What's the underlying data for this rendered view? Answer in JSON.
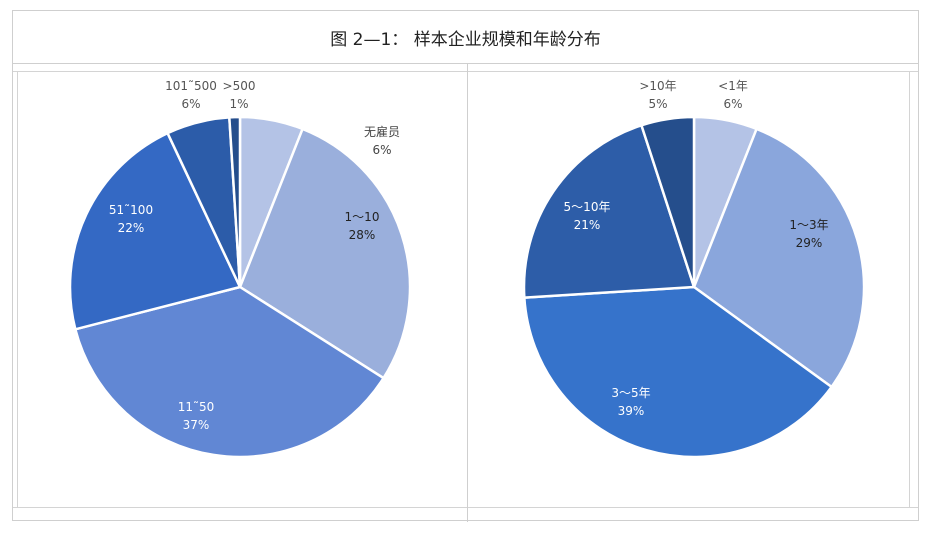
{
  "title": "图 2—1： 样本企业规模和年龄分布",
  "chart_data": [
    {
      "type": "pie",
      "slices": [
        {
          "label": "无雇员",
          "pct_text": "6%",
          "value": 6,
          "color": "#b4c3e6"
        },
        {
          "label": "1～10",
          "pct_text": "28%",
          "value": 28,
          "color": "#9aafdc"
        },
        {
          "label": "11˜50",
          "pct_text": "37%",
          "value": 37,
          "color": "#6187d4"
        },
        {
          "label": "51˜100",
          "pct_text": "22%",
          "value": 22,
          "color": "#3469c4"
        },
        {
          "label": "101˜500",
          "pct_text": "6%",
          "value": 6,
          "color": "#2c5ca9"
        },
        {
          "label": ">500",
          "pct_text": "1%",
          "value": 1,
          "color": "#254e8c"
        }
      ]
    },
    {
      "type": "pie",
      "slices": [
        {
          "label": "<1年",
          "pct_text": "6%",
          "value": 6,
          "color": "#b4c3e6"
        },
        {
          "label": "1～3年",
          "pct_text": "29%",
          "value": 29,
          "color": "#8aa6dc"
        },
        {
          "label": "3～5年",
          "pct_text": "39%",
          "value": 39,
          "color": "#3673cb"
        },
        {
          "label": "5～10年",
          "pct_text": "21%",
          "value": 21,
          "color": "#2d5da8"
        },
        {
          "label": ">10年",
          "pct_text": "5%",
          "value": 5,
          "color": "#254e8c"
        }
      ]
    }
  ]
}
